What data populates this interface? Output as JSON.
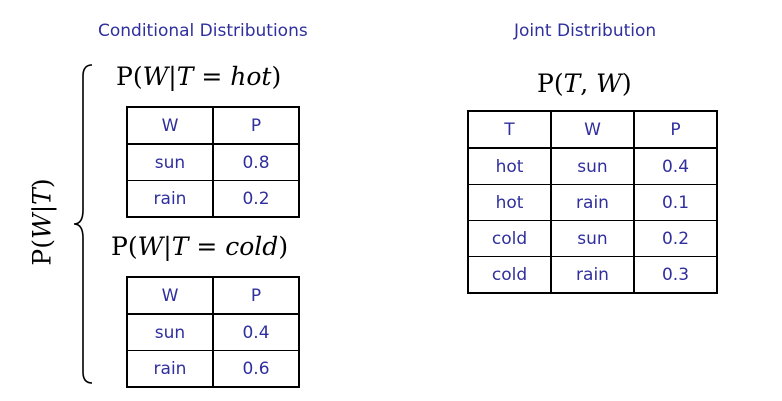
{
  "headings": {
    "conditional": "Conditional Distributions",
    "joint": "Joint Distribution"
  },
  "formulas": {
    "side": {
      "prefix": "P(",
      "a": "W",
      "bar": "|",
      "b": "T",
      "suffix": ")"
    },
    "hot": {
      "prefix": "P(",
      "a": "W",
      "bar": "|",
      "b": "T",
      "eq": " = ",
      "val": "hot",
      "suffix": ")"
    },
    "cold": {
      "prefix": "P(",
      "a": "W",
      "bar": "|",
      "b": "T",
      "eq": " = ",
      "val": "cold",
      "suffix": ")"
    },
    "joint": {
      "prefix": "P(",
      "a": "T",
      "comma": ", ",
      "b": "W",
      "suffix": ")"
    }
  },
  "tables": {
    "hot": {
      "headers": [
        "W",
        "P"
      ],
      "rows": [
        [
          "sun",
          "0.8"
        ],
        [
          "rain",
          "0.2"
        ]
      ]
    },
    "cold": {
      "headers": [
        "W",
        "P"
      ],
      "rows": [
        [
          "sun",
          "0.4"
        ],
        [
          "rain",
          "0.6"
        ]
      ]
    },
    "joint": {
      "headers": [
        "T",
        "W",
        "P"
      ],
      "rows": [
        [
          "hot",
          "sun",
          "0.4"
        ],
        [
          "hot",
          "rain",
          "0.1"
        ],
        [
          "cold",
          "sun",
          "0.2"
        ],
        [
          "cold",
          "rain",
          "0.3"
        ]
      ]
    }
  },
  "colors": {
    "label": "#2f2f9e",
    "border": "#000000"
  }
}
